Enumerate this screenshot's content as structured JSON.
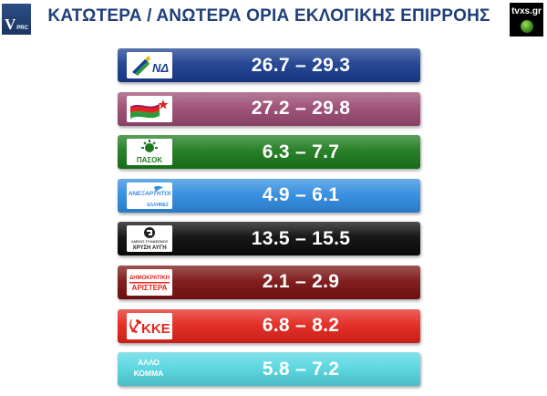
{
  "header": {
    "title": "ΚΑΤΩΤΕΡΑ / ΑΝΩΤΕΡΑ ΟΡΙΑ ΕΚΛΟΓΙΚΗΣ ΕΠΙΡΡΟΗΣ",
    "left_logo": {
      "main": "V",
      "sub": "PRC"
    },
    "right_logo": "tvxs.gr"
  },
  "chart_data": {
    "type": "table",
    "title": "ΚΑΤΩΤΕΡΑ / ΑΝΩΤΕΡΑ ΟΡΙΑ ΕΚΛΟΓΙΚΗΣ ΕΠΙΡΡΟΗΣ",
    "rows": [
      {
        "party": "ΝΔ",
        "range": "26.7 – 29.3",
        "low": 26.7,
        "high": 29.3,
        "color": "#1a3d8f"
      },
      {
        "party": "ΣΥΡΙΖΑ",
        "range": "27.2 – 29.8",
        "low": 27.2,
        "high": 29.8,
        "color": "#9a4a72"
      },
      {
        "party": "ΠΑΣΟΚ",
        "range": "6.3 – 7.7",
        "low": 6.3,
        "high": 7.7,
        "color": "#1c7a1c"
      },
      {
        "party": "ΑΝΕΞΑΡΤΗΤΟΙ ΕΛΛΗΝΕΣ",
        "range": "4.9 – 6.1",
        "low": 4.9,
        "high": 6.1,
        "color": "#2f8be0"
      },
      {
        "party": "ΧΡΥΣΗ ΑΥΓΗ",
        "range": "13.5 – 15.5",
        "low": 13.5,
        "high": 15.5,
        "color": "#0a0a0a"
      },
      {
        "party": "ΔΗΜΟΚΡΑΤΙΚΗ ΑΡΙΣΤΕΡΑ",
        "range": "2.1 – 2.9",
        "low": 2.1,
        "high": 2.9,
        "color": "#7a1212"
      },
      {
        "party": "ΚΚΕ",
        "range": "6.8 – 8.2",
        "low": 6.8,
        "high": 8.2,
        "color": "#e3241c"
      },
      {
        "party": "ΑΛΛΟ ΚΟΜΜΑ",
        "range": "5.8 – 7.2",
        "low": 5.8,
        "high": 7.2,
        "color": "#55d6e0"
      }
    ]
  },
  "logos": {
    "nd": "ΝΔ",
    "pasok": "ΠΑΣΟΚ",
    "anel": "ΑΝΕΞΑΡΤΗΤΟΙ",
    "anel_sub": "ΕΛΛΗΝΕΣ",
    "xa_top": "ΛΑΪΚΟΣ ΣΥΝΔΕΣΜΟΣ",
    "xa": "ΧΡΥΣΗ ΑΥΓΗ",
    "dimar_1": "ΔΗΜΟΚΡΑΤΙΚΗ",
    "dimar_2": "ΑΡΙΣΤΕΡΑ",
    "kke": "ΚΚΕ",
    "other_1": "ΑΛΛΟ",
    "other_2": "ΚΟΜΜΑ"
  }
}
